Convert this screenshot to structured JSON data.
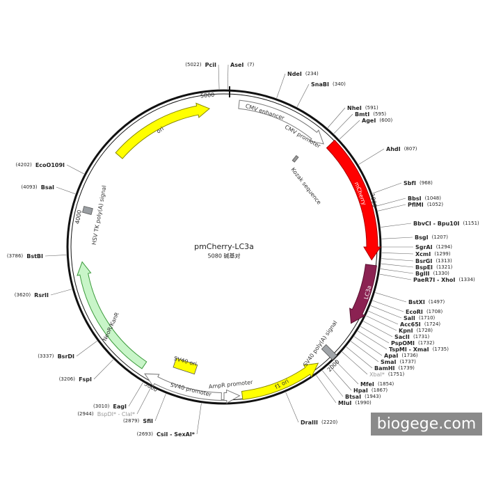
{
  "plasmid": {
    "name": "pmCherry-LC3a",
    "size_label": "5080 碱基对",
    "ticks": [
      "1000",
      "2000",
      "3000",
      "4000",
      "5000"
    ],
    "features": [
      "ori",
      "CMV enhancer",
      "CMV promoter",
      "Kozak sequence",
      "mCherry",
      "LC3a",
      "SV40 poly(A) signal",
      "f1 ori",
      "AmpR promoter",
      "SV40 promoter",
      "SV40 ori",
      "NeoR/KanR",
      "HSV TK poly(A) signal"
    ],
    "enzymes": [
      {
        "name": "PciI",
        "position": "(5022)"
      },
      {
        "name": "AseI",
        "position": "(7)"
      },
      {
        "name": "NdeI",
        "position": "(234)"
      },
      {
        "name": "SnaBI",
        "position": "(340)"
      },
      {
        "name": "NheI",
        "position": "(591)"
      },
      {
        "name": "BmtI",
        "position": "(595)"
      },
      {
        "name": "AgeI",
        "position": "(600)"
      },
      {
        "name": "AhdI",
        "position": "(807)"
      },
      {
        "name": "SbfI",
        "position": "(968)"
      },
      {
        "name": "BbsI",
        "position": "(1048)"
      },
      {
        "name": "PflMI",
        "position": "(1052)"
      },
      {
        "name": "BbvCI - Bpu10I",
        "position": "(1151)"
      },
      {
        "name": "BsgI",
        "position": "(1207)"
      },
      {
        "name": "SgrAI",
        "position": "(1294)"
      },
      {
        "name": "XcmI",
        "position": "(1299)"
      },
      {
        "name": "BsrGI",
        "position": "(1313)"
      },
      {
        "name": "BspEI",
        "position": "(1321)"
      },
      {
        "name": "BglII",
        "position": "(1330)"
      },
      {
        "name": "PaeR7I - XhoI",
        "position": "(1334)"
      },
      {
        "name": "BstXI",
        "position": "(1497)"
      },
      {
        "name": "EcoRI",
        "position": "(1708)"
      },
      {
        "name": "SalI",
        "position": "(1710)"
      },
      {
        "name": "Acc65I",
        "position": "(1724)"
      },
      {
        "name": "KpnI",
        "position": "(1728)"
      },
      {
        "name": "SacII",
        "position": "(1731)"
      },
      {
        "name": "PspOMI",
        "position": "(1732)"
      },
      {
        "name": "TspMI - XmaI",
        "position": "(1735)"
      },
      {
        "name": "ApaI",
        "position": "(1736)"
      },
      {
        "name": "SmaI",
        "position": "(1737)"
      },
      {
        "name": "BamHI",
        "position": "(1739)"
      },
      {
        "name": "XbaI*",
        "position": "(1751)",
        "muted": true
      },
      {
        "name": "MfeI",
        "position": "(1854)"
      },
      {
        "name": "HpaI",
        "position": "(1867)"
      },
      {
        "name": "BtsaI",
        "position": "(1943)"
      },
      {
        "name": "MluI",
        "position": "(1990)"
      },
      {
        "name": "DraIII",
        "position": "(2220)"
      },
      {
        "name": "CsiI - SexAI*",
        "position": "(2693)"
      },
      {
        "name": "SfiI",
        "position": "(2879)"
      },
      {
        "name": "BspDI* - ClaI*",
        "position": "(2944)",
        "muted": true
      },
      {
        "name": "EagI",
        "position": "(3010)"
      },
      {
        "name": "FspI",
        "position": "(3206)"
      },
      {
        "name": "BsrDI",
        "position": "(3337)"
      },
      {
        "name": "RsrII",
        "position": "(3620)"
      },
      {
        "name": "BstBI",
        "position": "(3786)"
      },
      {
        "name": "BsaI",
        "position": "(4093)"
      },
      {
        "name": "EcoO109I",
        "position": "(4202)"
      }
    ]
  },
  "watermark": "biogege.com"
}
